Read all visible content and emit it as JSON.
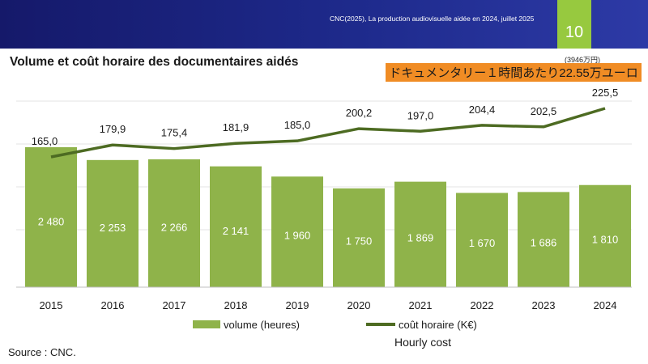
{
  "header": {
    "source": "CNC(2025), La production audiovisuelle aidée en 2024, juillet 2025",
    "page_number": "10"
  },
  "title": "Volume et coût horaire des documentaires aidés",
  "annotation": {
    "small_note": "(3946万円)",
    "banner": "ドキュメンタリー１時間あたり22.55万ユーロ"
  },
  "legend": {
    "volume": "volume (heures)",
    "cost": "coût horaire (K€)"
  },
  "hourly_note": "Hourly cost",
  "source": "Source : CNC.",
  "colors": {
    "header": "#1e2a8c",
    "badge": "#97c93f",
    "bar": "#8fb34a",
    "line": "#4d6b22",
    "banner": "#f08c24"
  },
  "chart_data": {
    "type": "bar",
    "categories": [
      "2015",
      "2016",
      "2017",
      "2018",
      "2019",
      "2020",
      "2021",
      "2022",
      "2023",
      "2024"
    ],
    "series": [
      {
        "name": "volume (heures)",
        "type": "bar",
        "values": [
          2480,
          2253,
          2266,
          2141,
          1960,
          1750,
          1869,
          1670,
          1686,
          1810
        ],
        "labels": [
          "2 480",
          "2 253",
          "2 266",
          "2 141",
          "1 960",
          "1 750",
          "1 869",
          "1 670",
          "1 686",
          "1 810"
        ]
      },
      {
        "name": "coût horaire (K€)",
        "type": "line",
        "values": [
          165.0,
          179.9,
          175.4,
          181.9,
          185.0,
          200.2,
          197.0,
          204.4,
          202.5,
          225.5
        ],
        "labels": [
          "165,0",
          "179,9",
          "175,4",
          "181,9",
          "185,0",
          "200,2",
          "197,0",
          "204,4",
          "202,5",
          "225,5"
        ]
      }
    ],
    "grid": true,
    "legend_position": "bottom"
  }
}
